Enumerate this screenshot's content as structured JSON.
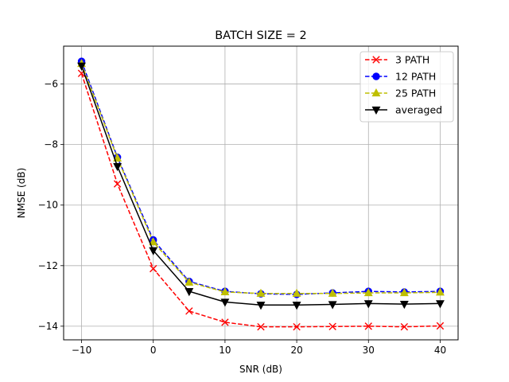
{
  "chart_data": {
    "type": "line",
    "title": "BATCH SIZE = 2",
    "xlabel": "SNR (dB)",
    "ylabel": "NMSE (dB)",
    "xlim": [
      -12.5,
      42.5
    ],
    "ylim": [
      -14.45,
      -4.75
    ],
    "xticks": [
      -10,
      0,
      10,
      20,
      30,
      40
    ],
    "xtick_labels": [
      "−10",
      "0",
      "10",
      "20",
      "30",
      "40"
    ],
    "yticks": [
      -14,
      -12,
      -10,
      -8,
      -6
    ],
    "ytick_labels": [
      "−14",
      "−12",
      "−10",
      "−8",
      "−6"
    ],
    "grid": true,
    "legend_position": "top-right",
    "x": [
      -10,
      -5,
      0,
      5,
      10,
      15,
      20,
      25,
      30,
      35,
      40
    ],
    "series": [
      {
        "name": "3 PATH",
        "color": "#ff0000",
        "dash": "dashed",
        "marker": "x",
        "values": [
          -5.65,
          -9.3,
          -12.1,
          -13.5,
          -13.87,
          -14.02,
          -14.02,
          -14.01,
          -14.0,
          -14.02,
          -13.99
        ]
      },
      {
        "name": "12 PATH",
        "color": "#0000ff",
        "dash": "dashed",
        "marker": "circle",
        "values": [
          -5.25,
          -8.42,
          -11.15,
          -12.52,
          -12.85,
          -12.93,
          -12.95,
          -12.9,
          -12.85,
          -12.87,
          -12.85
        ]
      },
      {
        "name": "25 PATH",
        "color": "#bfbf00",
        "dash": "dashed",
        "marker": "triangle-up",
        "values": [
          -5.33,
          -8.45,
          -11.22,
          -12.55,
          -12.87,
          -12.92,
          -12.92,
          -12.92,
          -12.9,
          -12.9,
          -12.88
        ]
      },
      {
        "name": "averaged",
        "color": "#000000",
        "dash": "solid",
        "marker": "triangle-down",
        "values": [
          -5.4,
          -8.72,
          -11.5,
          -12.85,
          -13.2,
          -13.3,
          -13.3,
          -13.28,
          -13.25,
          -13.27,
          -13.25
        ]
      }
    ]
  }
}
